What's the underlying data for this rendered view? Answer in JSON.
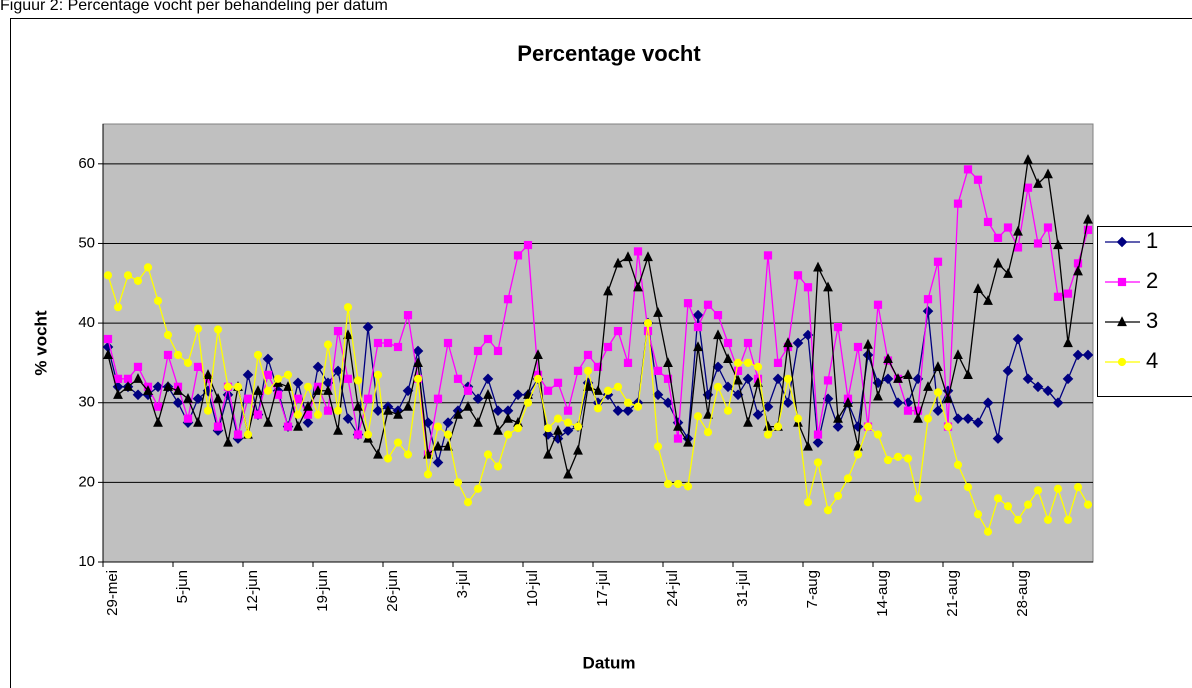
{
  "chart_data": {
    "type": "line",
    "caption": "Figuur 2: Percentage vocht per behandeling per datum",
    "title": "Percentage vocht",
    "x_label": "Datum",
    "y_label": "% vocht",
    "categories": [
      "29-mei",
      null,
      null,
      null,
      null,
      null,
      null,
      "5-jun",
      null,
      null,
      null,
      null,
      null,
      null,
      "12-jun",
      null,
      null,
      null,
      null,
      null,
      null,
      "19-jun",
      null,
      null,
      null,
      null,
      null,
      null,
      "26-jun",
      null,
      null,
      null,
      null,
      null,
      null,
      "3-jul",
      null,
      null,
      null,
      null,
      null,
      null,
      "10-jul",
      null,
      null,
      null,
      null,
      null,
      null,
      "17-jul",
      null,
      null,
      null,
      null,
      null,
      null,
      "24-jul",
      null,
      null,
      null,
      null,
      null,
      null,
      "31-jul",
      null,
      null,
      null,
      null,
      null,
      null,
      "7-aug",
      null,
      null,
      null,
      null,
      null,
      null,
      "14-aug",
      null,
      null,
      null,
      null,
      null,
      null,
      "21-aug",
      null,
      null,
      null,
      null,
      null,
      null,
      "28-aug",
      null,
      null,
      null,
      null,
      null,
      null,
      null
    ],
    "ylim": [
      10,
      65
    ],
    "yticks": [
      10,
      20,
      30,
      40,
      50,
      60
    ],
    "grid": true,
    "legend": "right",
    "plot_background": "#c0c0c0",
    "series": [
      {
        "name": "1",
        "color": "#000080",
        "marker": "diamond",
        "values": [
          37,
          32,
          32,
          31,
          31,
          32,
          32,
          30,
          27.5,
          30.5,
          31.5,
          26.5,
          31,
          25.5,
          33.5,
          28.5,
          35.5,
          31.5,
          27,
          32.5,
          27.5,
          34.5,
          32.5,
          34,
          28,
          26,
          39.5,
          29,
          29.5,
          29,
          31.5,
          36.5,
          27.5,
          22.5,
          27.5,
          29,
          32,
          30.5,
          33,
          29,
          29,
          31,
          31,
          33,
          26,
          25.5,
          26.5,
          27,
          32.5,
          30,
          31,
          29,
          29,
          30,
          40,
          31,
          30,
          27.5,
          25.5,
          41,
          31,
          34.5,
          32,
          31,
          33,
          28.5,
          29.5,
          33,
          30,
          37.5,
          38.5,
          25,
          30.5,
          27,
          30,
          27,
          36,
          32.5,
          33,
          30,
          30,
          33,
          41.5,
          29,
          31.5,
          28,
          28,
          27.5,
          30,
          25.5,
          34,
          38,
          33,
          32,
          31.5,
          30,
          33,
          36,
          36
        ]
      },
      {
        "name": "2",
        "color": "#ff00ff",
        "marker": "square",
        "values": [
          38,
          33,
          33,
          34.5,
          32,
          29.5,
          36,
          32,
          28,
          34.5,
          33,
          27,
          32,
          26,
          30.5,
          28.5,
          33.5,
          31,
          27,
          30.5,
          28.5,
          32,
          29,
          39,
          33,
          26,
          30.5,
          37.5,
          37.5,
          37,
          41,
          33,
          23.5,
          30.5,
          37.5,
          33,
          31.5,
          36.5,
          38,
          36.5,
          43,
          48.5,
          49.8,
          33.5,
          31.5,
          32.5,
          29,
          34,
          36,
          34.5,
          37,
          39,
          35,
          49,
          39,
          34,
          33,
          25.5,
          42.5,
          39.5,
          42.3,
          41,
          37.5,
          34,
          37.5,
          33,
          48.5,
          35,
          37,
          46,
          44.5,
          26,
          32.8,
          39.5,
          30.5,
          37,
          27,
          42.3,
          35.3,
          33,
          29,
          29,
          43,
          47.7,
          27,
          55,
          59.3,
          58,
          52.7,
          50.7,
          52,
          49.5,
          57,
          50,
          52,
          43.3,
          43.7,
          47.5,
          51.7
        ]
      },
      {
        "name": "3",
        "color": "#000000",
        "marker": "triangle",
        "values": [
          36,
          31,
          32,
          33,
          31.5,
          27.5,
          32,
          31.5,
          30.5,
          27.5,
          33.5,
          30.5,
          25,
          32,
          26,
          31.5,
          27.5,
          32.5,
          32,
          27,
          29.5,
          31.5,
          31.5,
          26.5,
          38.5,
          29.5,
          25.5,
          23.5,
          29,
          28.5,
          29.5,
          35,
          23.5,
          24.5,
          24.5,
          28.5,
          29.5,
          27.5,
          31,
          26.5,
          28,
          27.5,
          31,
          36,
          23.5,
          26.5,
          21,
          24,
          32,
          31.5,
          44,
          47.5,
          48.3,
          44.5,
          48.3,
          41.3,
          35,
          27,
          25,
          37,
          28.5,
          38.5,
          35.5,
          32.8,
          27.5,
          32.5,
          27,
          27,
          37.5,
          27.5,
          24.5,
          47,
          44.5,
          28,
          30,
          24.5,
          37.3,
          30.8,
          35.5,
          33,
          33.5,
          28,
          32,
          34.5,
          30.5,
          36,
          33.5,
          44.3,
          42.8,
          47.5,
          46.2,
          51.5,
          60.5,
          57.5,
          58.7,
          49.8,
          37.5,
          46.5,
          53
        ]
      },
      {
        "name": "4",
        "color": "#ffff00",
        "marker": "circle",
        "values": [
          46,
          42,
          46,
          45.3,
          47,
          42.8,
          38.5,
          36,
          35,
          39.3,
          29,
          39.2,
          32,
          32,
          26,
          36,
          31.5,
          33,
          33.5,
          28.5,
          32,
          28.5,
          37.3,
          29,
          42,
          32.8,
          26,
          33.5,
          23,
          25,
          23.5,
          33,
          21,
          27,
          26,
          20,
          17.5,
          19.2,
          23.5,
          22,
          26,
          26.8,
          30,
          33,
          26.8,
          28,
          27.5,
          27,
          34,
          29.3,
          31.5,
          32,
          30,
          29.5,
          40,
          24.5,
          19.8,
          19.8,
          19.5,
          28.3,
          26.3,
          32,
          29,
          35,
          35,
          34.5,
          26,
          27,
          33,
          28,
          17.5,
          22.5,
          16.5,
          18.3,
          20.5,
          23.5,
          27,
          26,
          22.8,
          23.2,
          23,
          18,
          28,
          31.3,
          27,
          22.2,
          19.4,
          16,
          13.8,
          18,
          17,
          15.3,
          17.2,
          19,
          15.3,
          19.2,
          15.3,
          19.4,
          17.2
        ]
      }
    ]
  }
}
